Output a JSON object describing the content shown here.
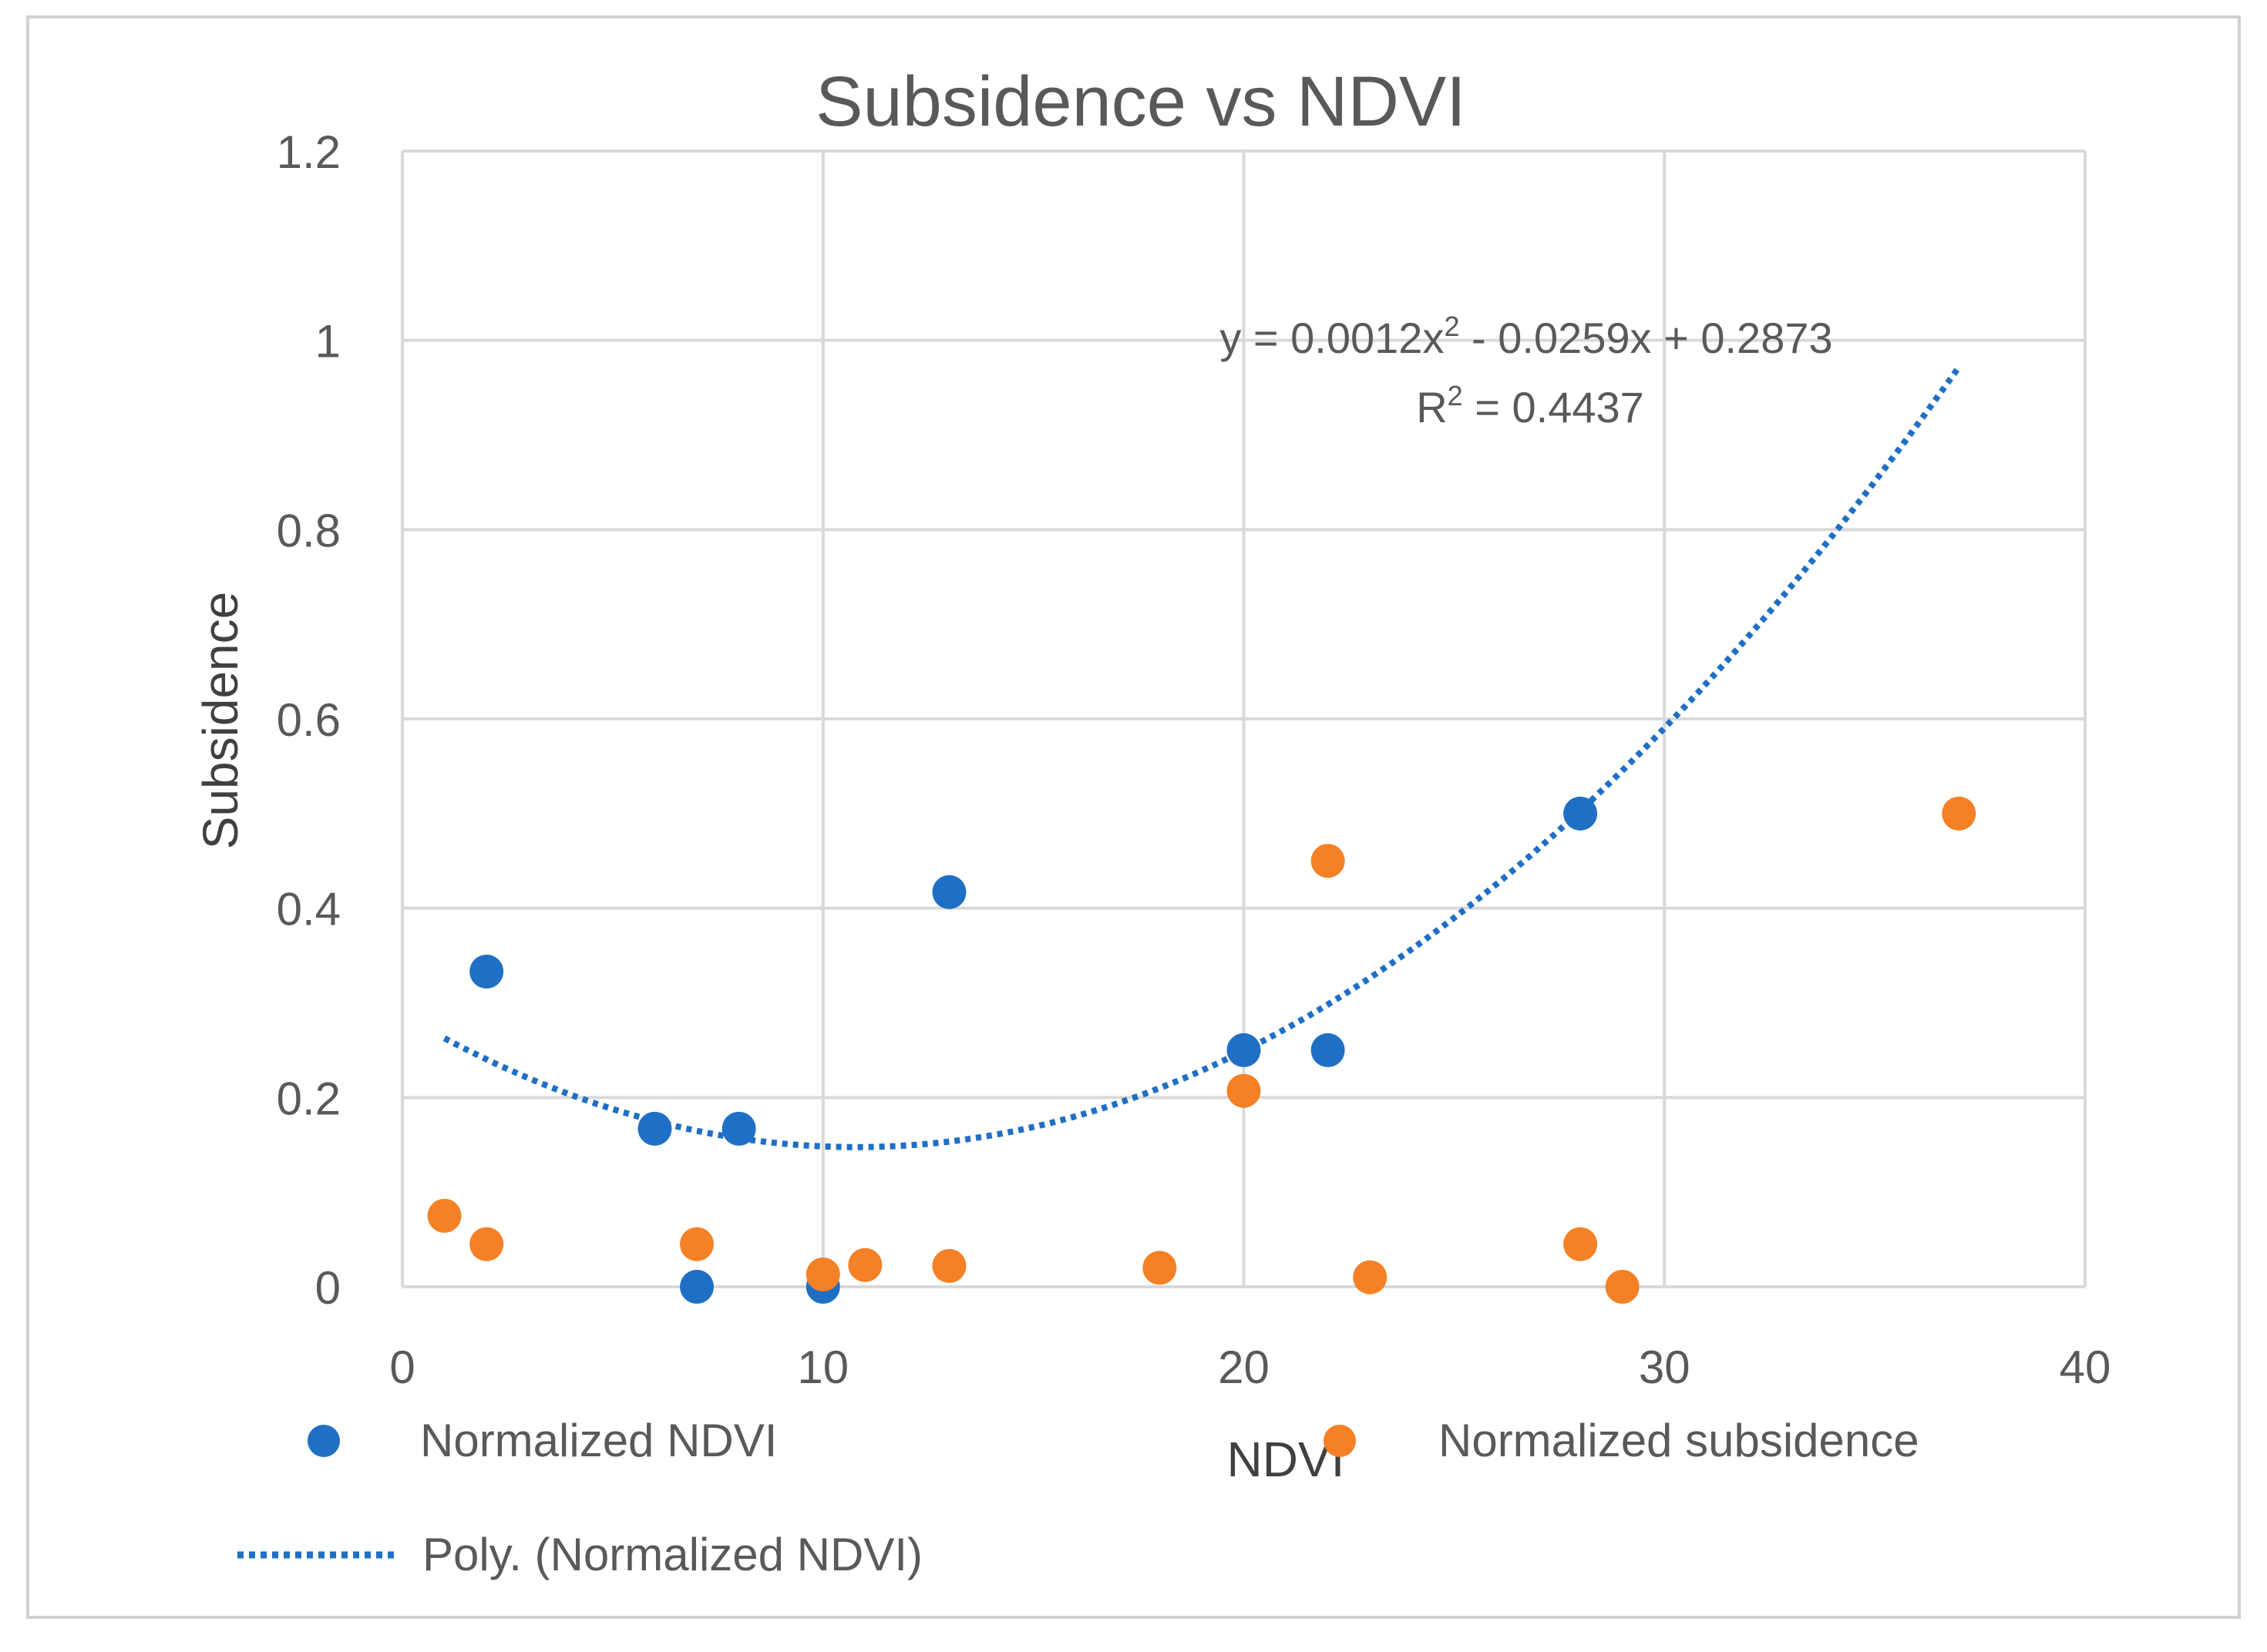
{
  "chart_data": {
    "type": "scatter",
    "title": "Subsidence vs NDVI",
    "xlabel": "NDVI",
    "ylabel": "Subsidence",
    "xlim": [
      0,
      40
    ],
    "ylim": [
      0,
      1.2
    ],
    "x_ticks": [
      0,
      10,
      20,
      30,
      40
    ],
    "y_ticks": [
      0,
      0.2,
      0.4,
      0.6,
      0.8,
      1,
      1.2
    ],
    "y_tick_labels": [
      "0",
      "0.2",
      "0.4",
      "0.6",
      "0.8",
      "1",
      "1.2"
    ],
    "grid": true,
    "series": [
      {
        "name": "Normalized NDVI",
        "color": "#1f6fc5",
        "points": [
          {
            "x": 2,
            "y": 0.333
          },
          {
            "x": 6,
            "y": 0.167
          },
          {
            "x": 7,
            "y": 0.0
          },
          {
            "x": 8,
            "y": 0.167
          },
          {
            "x": 10,
            "y": 0.0
          },
          {
            "x": 13,
            "y": 0.417
          },
          {
            "x": 20,
            "y": 0.25
          },
          {
            "x": 22,
            "y": 0.25
          },
          {
            "x": 28,
            "y": 0.5
          }
        ]
      },
      {
        "name": "Normalized subsidence",
        "color": "#f58025",
        "points": [
          {
            "x": 1,
            "y": 0.075
          },
          {
            "x": 2,
            "y": 0.045
          },
          {
            "x": 7,
            "y": 0.045
          },
          {
            "x": 10,
            "y": 0.013
          },
          {
            "x": 11,
            "y": 0.023
          },
          {
            "x": 13,
            "y": 0.022
          },
          {
            "x": 18,
            "y": 0.02
          },
          {
            "x": 20,
            "y": 0.207
          },
          {
            "x": 22,
            "y": 0.45
          },
          {
            "x": 23,
            "y": 0.01
          },
          {
            "x": 28,
            "y": 0.045
          },
          {
            "x": 29,
            "y": 0.0
          },
          {
            "x": 37,
            "y": 0.5
          }
        ]
      }
    ],
    "trendline": {
      "name": "Poly. (Normalized NDVI)",
      "color": "#1f6fc5",
      "type": "polynomial",
      "coefficients": {
        "a": 0.0012,
        "b": -0.0259,
        "c": 0.2873
      },
      "x_range": [
        1,
        37
      ],
      "equation_prefix": "y = 0.0012x",
      "equation_sup": "2",
      "equation_suffix": " - 0.0259x + 0.2873",
      "r2_prefix": "R",
      "r2_sup": "2",
      "r2_suffix": " = 0.4437"
    },
    "legend": {
      "placement": "bottom",
      "items": [
        "Normalized NDVI",
        "Normalized subsidence",
        "Poly. (Normalized NDVI)"
      ]
    }
  }
}
